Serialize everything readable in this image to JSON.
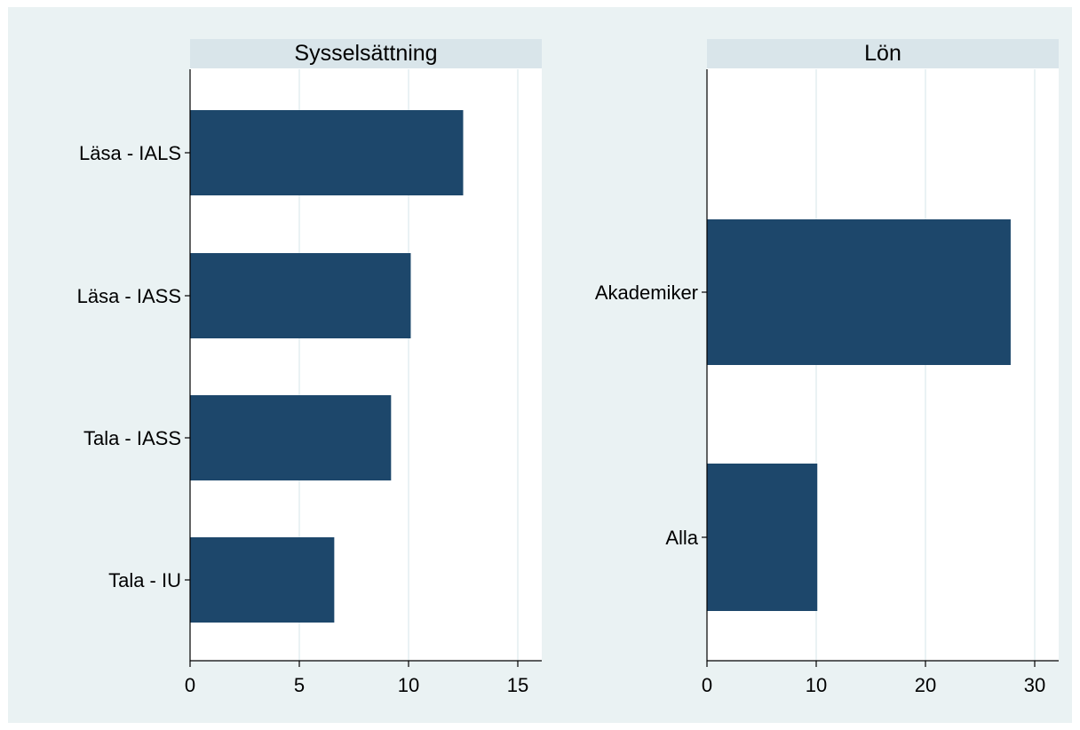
{
  "colors": {
    "bar": "#1d476b",
    "grid": "#e4eef1",
    "strip": "#d9e5ea",
    "background": "#eaf2f3"
  },
  "chart_data": [
    {
      "type": "bar",
      "orientation": "horizontal",
      "title": "Sysselsättning",
      "categories": [
        "Läsa - IALS",
        "Läsa - IASS",
        "Tala - IASS",
        "Tala - IU"
      ],
      "values": [
        12.5,
        10.1,
        9.2,
        6.6
      ],
      "xlim": [
        0,
        16
      ],
      "xticks": [
        0,
        5,
        10,
        15
      ],
      "grid": true
    },
    {
      "type": "bar",
      "orientation": "horizontal",
      "title": "Lön",
      "categories": [
        "Akademiker",
        "Alla"
      ],
      "values": [
        27.8,
        10.1
      ],
      "xlim": [
        0,
        32
      ],
      "xticks": [
        0,
        10,
        20,
        30
      ],
      "grid": true
    }
  ]
}
